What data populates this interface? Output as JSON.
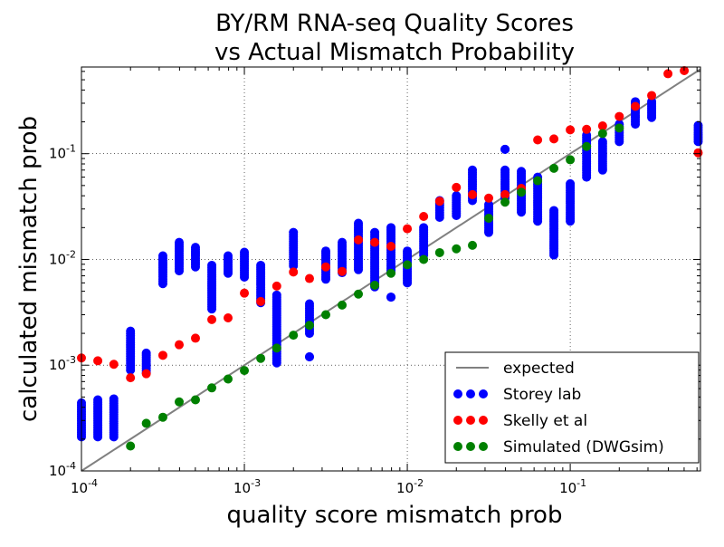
{
  "chart_data": {
    "type": "scatter",
    "title": [
      "BY/RM RNA-seq Quality Scores",
      "vs Actual Mismatch Probability"
    ],
    "xlabel": "quality score mismatch prob",
    "ylabel": "calculated mismatch prob",
    "xscale": "log",
    "yscale": "log",
    "xlim": [
      0.0001,
      0.63
    ],
    "ylim": [
      0.0001,
      0.66
    ],
    "grid": true,
    "legend_position": "lower-right",
    "x_ticks": [
      {
        "value": 0.0001,
        "base": "10",
        "exp": "-4"
      },
      {
        "value": 0.001,
        "base": "10",
        "exp": "-3"
      },
      {
        "value": 0.01,
        "base": "10",
        "exp": "-2"
      },
      {
        "value": 0.1,
        "base": "10",
        "exp": "-1"
      }
    ],
    "y_ticks": [
      {
        "value": 0.0001,
        "base": "10",
        "exp": "-4"
      },
      {
        "value": 0.001,
        "base": "10",
        "exp": "-3"
      },
      {
        "value": 0.01,
        "base": "10",
        "exp": "-2"
      },
      {
        "value": 0.1,
        "base": "10",
        "exp": "-1"
      }
    ],
    "expected": {
      "name": "expected",
      "color": "#808080",
      "x": [
        0.0001,
        0.63
      ],
      "y": [
        0.0001,
        0.63
      ]
    },
    "series": [
      {
        "name": "Storey lab",
        "color": "#0000ff",
        "marker": "circle",
        "clusters": [
          {
            "x": 0.0001,
            "ymin": 0.00021,
            "ymax": 0.00044
          },
          {
            "x": 0.000126,
            "ymin": 0.00021,
            "ymax": 0.00047
          },
          {
            "x": 0.000158,
            "ymin": 0.00021,
            "ymax": 0.00048
          },
          {
            "x": 0.0002,
            "ymin": 0.0009,
            "ymax": 0.0021
          },
          {
            "x": 0.00025,
            "ymin": 0.00085,
            "ymax": 0.0013
          },
          {
            "x": 0.000316,
            "ymin": 0.0059,
            "ymax": 0.0108
          },
          {
            "x": 0.000398,
            "ymin": 0.0078,
            "ymax": 0.0145
          },
          {
            "x": 0.000501,
            "ymin": 0.0085,
            "ymax": 0.013
          },
          {
            "x": 0.000631,
            "ymin": 0.0034,
            "ymax": 0.0088
          },
          {
            "x": 0.000794,
            "ymin": 0.0074,
            "ymax": 0.0108
          },
          {
            "x": 0.001,
            "ymin": 0.0068,
            "ymax": 0.0117
          },
          {
            "x": 0.00126,
            "ymin": 0.0039,
            "ymax": 0.0088
          },
          {
            "x": 0.00158,
            "ymin": 0.00105,
            "ymax": 0.0046
          },
          {
            "x": 0.002,
            "ymin": 0.0087,
            "ymax": 0.018
          },
          {
            "x": 0.00251,
            "ymin": 0.002,
            "ymax": 0.0038
          },
          {
            "x": 0.00251,
            "ymin": 0.0012,
            "ymax": 0.0012
          },
          {
            "x": 0.00316,
            "ymin": 0.0065,
            "ymax": 0.012
          },
          {
            "x": 0.00398,
            "ymin": 0.0075,
            "ymax": 0.0145
          },
          {
            "x": 0.00501,
            "ymin": 0.008,
            "ymax": 0.022
          },
          {
            "x": 0.00631,
            "ymin": 0.0055,
            "ymax": 0.018
          },
          {
            "x": 0.00794,
            "ymin": 0.0075,
            "ymax": 0.02
          },
          {
            "x": 0.00794,
            "ymin": 0.0044,
            "ymax": 0.0044
          },
          {
            "x": 0.01,
            "ymin": 0.006,
            "ymax": 0.012
          },
          {
            "x": 0.0126,
            "ymin": 0.011,
            "ymax": 0.02
          },
          {
            "x": 0.0158,
            "ymin": 0.025,
            "ymax": 0.036
          },
          {
            "x": 0.02,
            "ymin": 0.026,
            "ymax": 0.04
          },
          {
            "x": 0.0251,
            "ymin": 0.036,
            "ymax": 0.07
          },
          {
            "x": 0.0316,
            "ymin": 0.018,
            "ymax": 0.033
          },
          {
            "x": 0.0398,
            "ymin": 0.038,
            "ymax": 0.07
          },
          {
            "x": 0.0398,
            "ymin": 0.11,
            "ymax": 0.11
          },
          {
            "x": 0.0501,
            "ymin": 0.028,
            "ymax": 0.068
          },
          {
            "x": 0.0631,
            "ymin": 0.023,
            "ymax": 0.06
          },
          {
            "x": 0.0794,
            "ymin": 0.011,
            "ymax": 0.029
          },
          {
            "x": 0.1,
            "ymin": 0.023,
            "ymax": 0.052
          },
          {
            "x": 0.126,
            "ymin": 0.06,
            "ymax": 0.15
          },
          {
            "x": 0.158,
            "ymin": 0.07,
            "ymax": 0.13
          },
          {
            "x": 0.2,
            "ymin": 0.13,
            "ymax": 0.19
          },
          {
            "x": 0.251,
            "ymin": 0.19,
            "ymax": 0.31
          },
          {
            "x": 0.316,
            "ymin": 0.22,
            "ymax": 0.31
          },
          {
            "x": 0.61,
            "ymin": 0.13,
            "ymax": 0.185
          }
        ]
      },
      {
        "name": "Skelly et al",
        "color": "#ff0000",
        "marker": "circle",
        "points": [
          [
            0.0001,
            0.00117
          ],
          [
            0.000126,
            0.0011
          ],
          [
            0.000158,
            0.00102
          ],
          [
            0.0002,
            0.00076
          ],
          [
            0.00025,
            0.00083
          ],
          [
            0.000316,
            0.00124
          ],
          [
            0.000398,
            0.00156
          ],
          [
            0.000501,
            0.0018
          ],
          [
            0.000631,
            0.0027
          ],
          [
            0.000794,
            0.0028
          ],
          [
            0.001,
            0.0048
          ],
          [
            0.00126,
            0.004
          ],
          [
            0.00158,
            0.0056
          ],
          [
            0.002,
            0.0076
          ],
          [
            0.00251,
            0.0066
          ],
          [
            0.00316,
            0.0085
          ],
          [
            0.00398,
            0.0077
          ],
          [
            0.00501,
            0.0153
          ],
          [
            0.00631,
            0.0145
          ],
          [
            0.00794,
            0.0133
          ],
          [
            0.01,
            0.0195
          ],
          [
            0.0126,
            0.0255
          ],
          [
            0.0158,
            0.0355
          ],
          [
            0.02,
            0.048
          ],
          [
            0.0251,
            0.041
          ],
          [
            0.0316,
            0.038
          ],
          [
            0.0398,
            0.041
          ],
          [
            0.0501,
            0.047
          ],
          [
            0.0631,
            0.135
          ],
          [
            0.0794,
            0.138
          ],
          [
            0.1,
            0.168
          ],
          [
            0.126,
            0.17
          ],
          [
            0.158,
            0.183
          ],
          [
            0.2,
            0.225
          ],
          [
            0.251,
            0.28
          ],
          [
            0.316,
            0.355
          ],
          [
            0.398,
            0.57
          ],
          [
            0.501,
            0.61
          ],
          [
            0.61,
            0.102
          ]
        ]
      },
      {
        "name": "Simulated (DWGsim)",
        "color": "#008000",
        "marker": "circle",
        "points": [
          [
            0.0002,
            0.000172
          ],
          [
            0.00025,
            0.000282
          ],
          [
            0.000316,
            0.000322
          ],
          [
            0.000398,
            0.00045
          ],
          [
            0.000501,
            0.00047
          ],
          [
            0.000631,
            0.00061
          ],
          [
            0.000794,
            0.00074
          ],
          [
            0.001,
            0.00089
          ],
          [
            0.00126,
            0.00116
          ],
          [
            0.00158,
            0.00145
          ],
          [
            0.002,
            0.00192
          ],
          [
            0.00251,
            0.00238
          ],
          [
            0.00316,
            0.003
          ],
          [
            0.00398,
            0.0037
          ],
          [
            0.00501,
            0.0047
          ],
          [
            0.00631,
            0.0057
          ],
          [
            0.00794,
            0.0074
          ],
          [
            0.01,
            0.0089
          ],
          [
            0.0126,
            0.01
          ],
          [
            0.0158,
            0.0116
          ],
          [
            0.02,
            0.0126
          ],
          [
            0.0251,
            0.0136
          ],
          [
            0.0316,
            0.0245
          ],
          [
            0.0398,
            0.0348
          ],
          [
            0.0501,
            0.0432
          ],
          [
            0.0631,
            0.0555
          ],
          [
            0.0794,
            0.0727
          ],
          [
            0.1,
            0.0876
          ],
          [
            0.126,
            0.117
          ],
          [
            0.158,
            0.155
          ],
          [
            0.2,
            0.175
          ]
        ]
      }
    ]
  }
}
